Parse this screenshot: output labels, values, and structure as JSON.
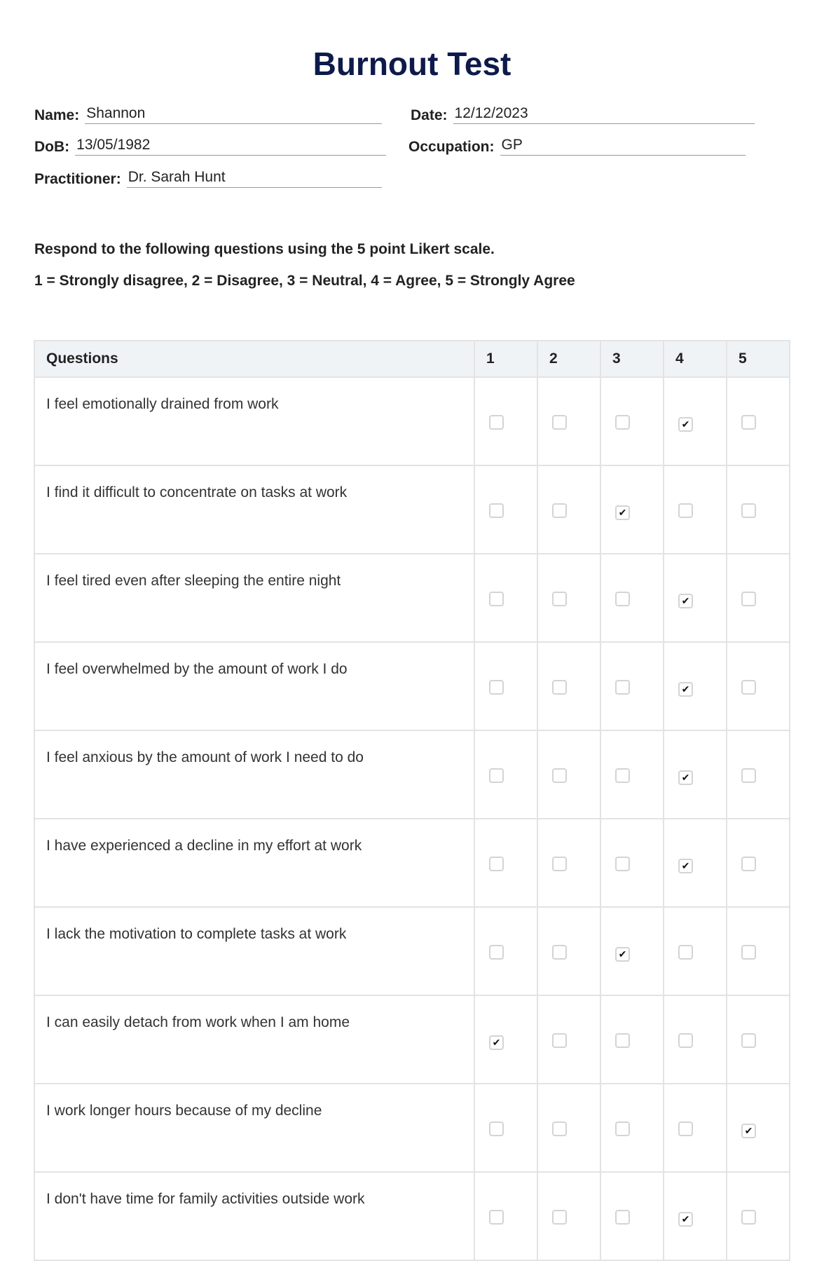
{
  "title": "Burnout Test",
  "fields": {
    "name": {
      "label": "Name:",
      "value": "Shannon"
    },
    "date": {
      "label": "Date:",
      "value": "12/12/2023"
    },
    "dob": {
      "label": "DoB:",
      "value": "13/05/1982"
    },
    "occupation": {
      "label": "Occupation:",
      "value": "GP"
    },
    "practitioner": {
      "label": "Practitioner:",
      "value": "Dr. Sarah Hunt"
    }
  },
  "instructions": {
    "line1": "Respond to the following questions using the 5 point Likert scale.",
    "line2": "1 = Strongly disagree, 2 = Disagree, 3 = Neutral, 4 = Agree, 5 = Strongly Agree"
  },
  "table": {
    "headers": [
      "Questions",
      "1",
      "2",
      "3",
      "4",
      "5"
    ],
    "rows": [
      {
        "question": "I feel emotionally drained from work",
        "answer": 4
      },
      {
        "question": "I find it difficult to concentrate on tasks at work",
        "answer": 3
      },
      {
        "question": "I feel tired even after sleeping the entire night",
        "answer": 4
      },
      {
        "question": "I feel overwhelmed by the amount of work I do",
        "answer": 4
      },
      {
        "question": "I feel anxious by the amount of work I need to do",
        "answer": 4
      },
      {
        "question": "I have experienced a decline in my effort at work",
        "answer": 4
      },
      {
        "question": "I lack the motivation to complete tasks at work",
        "answer": 3
      },
      {
        "question": "I can easily detach from work when I am home",
        "answer": 1
      },
      {
        "question": "I work longer hours because of my decline",
        "answer": 5
      },
      {
        "question": "I don't have time for family activities outside work",
        "answer": 4
      }
    ]
  }
}
